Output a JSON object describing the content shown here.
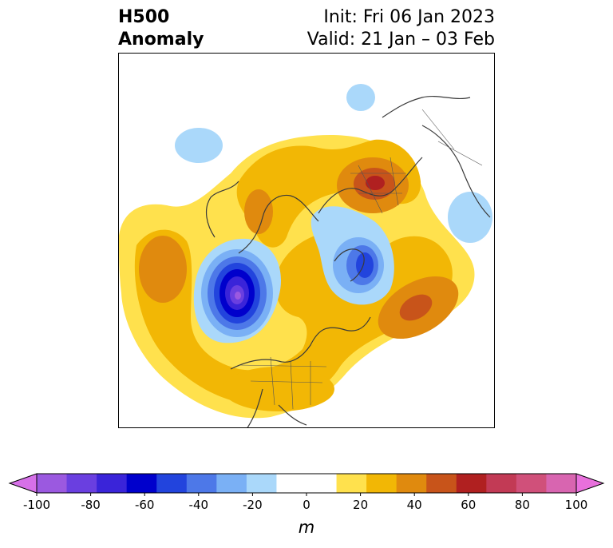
{
  "title": {
    "left_line1": "H500",
    "left_line2": "Anomaly",
    "right_line1": "Init: Fri 06 Jan 2023",
    "right_line2": "Valid: 21 Jan – 03 Feb"
  },
  "colorbar": {
    "unit": "m",
    "min": -100,
    "max": 100,
    "step": 10,
    "extend": "both",
    "tick_labels": [
      "-100",
      "-80",
      "-60",
      "-40",
      "-20",
      "0",
      "20",
      "40",
      "60",
      "80",
      "100"
    ],
    "colors": [
      "#9b59e0",
      "#6a3fe0",
      "#3a24d9",
      "#0000cc",
      "#2244dd",
      "#4d78e8",
      "#7ab0f5",
      "#aad8fa",
      "#ffffff",
      "#ffffff",
      "#ffe14d",
      "#f2b705",
      "#e08a0e",
      "#c8541a",
      "#b02020",
      "#c23a55",
      "#d0507a",
      "#d865b0"
    ],
    "under_color": "#d670e8",
    "over_color": "#e870dc"
  }
}
